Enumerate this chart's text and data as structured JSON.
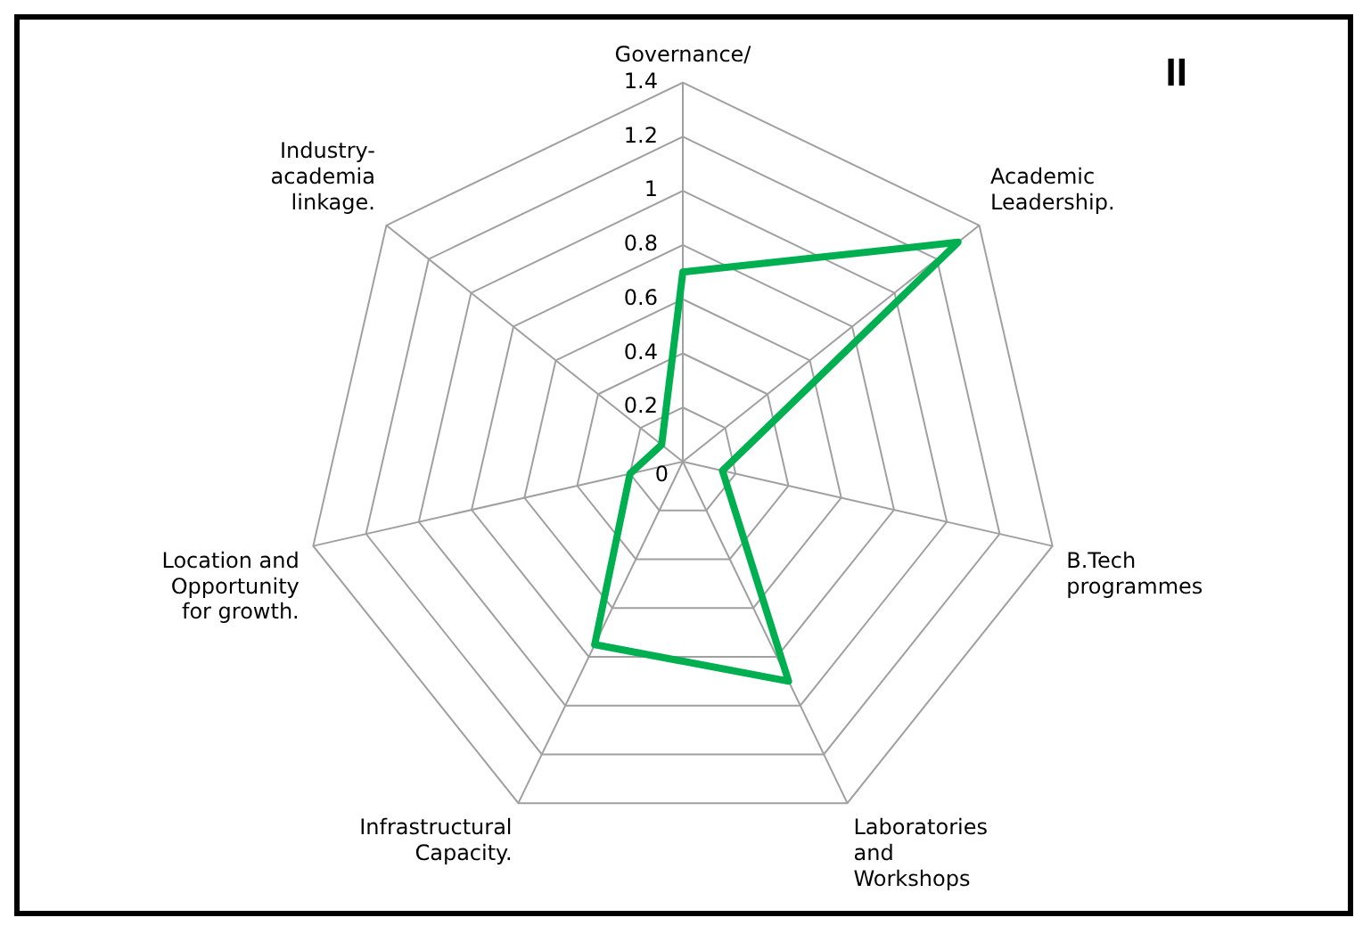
{
  "chart_data": {
    "type": "radar",
    "categories": [
      "Governance/",
      "Academic Leadership.",
      "B.Tech programmes",
      "Laboratories and Workshops",
      "Infrastructural Capacity.",
      "Location and Opportunity for growth.",
      "Industry-academia linkage."
    ],
    "series": [
      {
        "color": "#00b050",
        "values": [
          0.7,
          1.3,
          0.15,
          0.9,
          0.75,
          0.2,
          0.1
        ]
      }
    ],
    "ylim": [
      0,
      1.4
    ],
    "yticks": [
      0,
      0.2,
      0.4,
      0.6,
      0.8,
      1,
      1.2,
      1.4
    ],
    "grid": true,
    "legend": false,
    "marker": "none",
    "annotations": [
      "II"
    ]
  }
}
